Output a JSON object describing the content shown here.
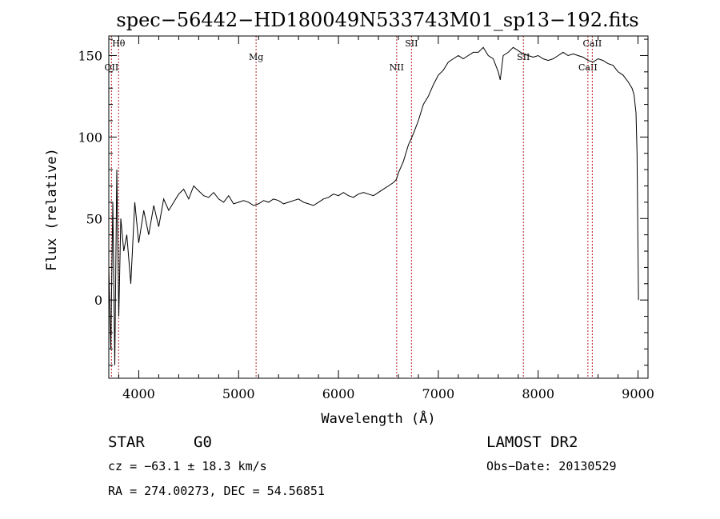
{
  "chart_data": {
    "type": "line",
    "title": "spec−56442−HD180049N533743M01_sp13−192.fits",
    "xlabel": "Wavelength (Å)",
    "ylabel": "Flux (relative)",
    "xlim": [
      3700,
      9100
    ],
    "ylim": [
      -48,
      162
    ],
    "xticks": [
      4000,
      5000,
      6000,
      7000,
      8000,
      9000
    ],
    "yticks": [
      0,
      50,
      100,
      150
    ],
    "grid": false,
    "legend": "none",
    "series": [
      {
        "color": "#000000",
        "x": [
          3700,
          3720,
          3740,
          3760,
          3780,
          3800,
          3820,
          3850,
          3880,
          3920,
          3960,
          4000,
          4050,
          4100,
          4150,
          4200,
          4250,
          4300,
          4350,
          4400,
          4450,
          4500,
          4550,
          4600,
          4650,
          4700,
          4750,
          4800,
          4850,
          4900,
          4950,
          5000,
          5050,
          5100,
          5150,
          5200,
          5250,
          5300,
          5350,
          5400,
          5450,
          5500,
          5550,
          5600,
          5650,
          5700,
          5750,
          5800,
          5850,
          5900,
          5950,
          6000,
          6050,
          6100,
          6150,
          6200,
          6250,
          6300,
          6350,
          6400,
          6450,
          6500,
          6550,
          6580,
          6600,
          6650,
          6700,
          6750,
          6800,
          6850,
          6900,
          6950,
          7000,
          7050,
          7100,
          7150,
          7200,
          7250,
          7300,
          7350,
          7400,
          7450,
          7500,
          7550,
          7600,
          7620,
          7650,
          7700,
          7750,
          7800,
          7850,
          7900,
          7950,
          8000,
          8050,
          8100,
          8150,
          8200,
          8250,
          8300,
          8350,
          8400,
          8450,
          8500,
          8550,
          8600,
          8650,
          8700,
          8750,
          8800,
          8850,
          8900,
          8940,
          8960,
          8980,
          8990,
          9000,
          9005
        ],
        "y": [
          20,
          -30,
          60,
          -40,
          80,
          -10,
          50,
          30,
          40,
          10,
          60,
          35,
          55,
          40,
          58,
          45,
          62,
          55,
          60,
          65,
          68,
          62,
          70,
          67,
          64,
          63,
          66,
          62,
          60,
          64,
          59,
          60,
          61,
          60,
          58,
          59,
          61,
          60,
          62,
          61,
          59,
          60,
          61,
          62,
          60,
          59,
          58,
          60,
          62,
          63,
          65,
          64,
          66,
          64,
          63,
          65,
          66,
          65,
          64,
          66,
          68,
          70,
          72,
          74,
          78,
          85,
          95,
          102,
          110,
          120,
          125,
          132,
          138,
          141,
          146,
          148,
          150,
          148,
          150,
          152,
          152,
          155,
          150,
          148,
          140,
          135,
          150,
          152,
          155,
          153,
          151,
          150,
          149,
          150,
          148,
          147,
          148,
          150,
          152,
          150,
          151,
          150,
          149,
          147,
          146,
          148,
          147,
          145,
          144,
          140,
          138,
          134,
          130,
          126,
          115,
          90,
          30,
          0
        ]
      }
    ],
    "spectral_lines": [
      {
        "label": "OII",
        "wavelength": 3727
      },
      {
        "label": "Hθ",
        "wavelength": 3798
      },
      {
        "label": "Mg",
        "wavelength": 5175
      },
      {
        "label": "NII",
        "wavelength": 6583
      },
      {
        "label": "SII",
        "wavelength": 6731
      },
      {
        "label": "SII",
        "wavelength": 7852
      },
      {
        "label": "CaII",
        "wavelength": 8498
      },
      {
        "label": "CaII",
        "wavelength": 8542
      }
    ]
  },
  "info": {
    "object_class": "STAR",
    "subclass": "G0",
    "survey": "LAMOST DR2",
    "cz": "cz = −63.1 ± 18.3 km/s",
    "obs_date": "Obs−Date: 20130529",
    "coords": "RA = 274.00273, DEC =  54.56851"
  }
}
